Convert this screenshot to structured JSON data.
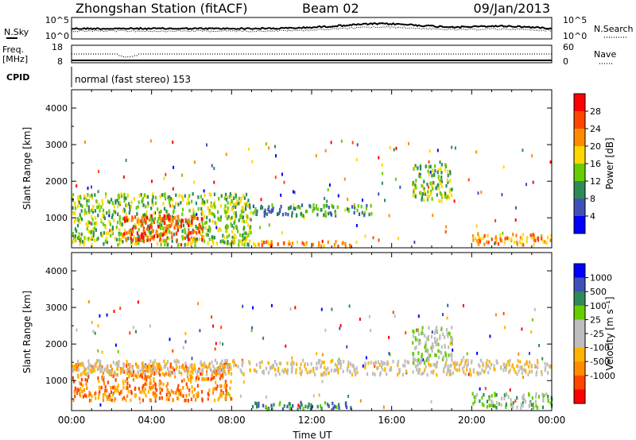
{
  "header": {
    "station": "Zhongshan Station (fitACF)",
    "beam": "Beam 02",
    "date": "09/Jan/2013"
  },
  "top_panels": {
    "nsky_label": "N.Sky",
    "nsky_tick_top": "10^5",
    "nsky_tick_bottom": "10^0",
    "nsearch_label": "N.Search",
    "nsearch_tick_top": "10^5",
    "nsearch_tick_bottom": "10^0",
    "freq_label": "Freq.",
    "freq_unit": "[MHz]",
    "freq_tick_top": "18",
    "freq_tick_bottom": "8",
    "nave_label": "Nave",
    "nave_tick_top": "60",
    "nave_tick_bottom": "0",
    "cpid_label": "CPID",
    "cpid_text": "normal (fast stereo) 153"
  },
  "colors": {
    "power": [
      "#0000ff",
      "#3f51b8",
      "#2e8b57",
      "#66cd00",
      "#ffd700",
      "#ff8c00",
      "#ff4500",
      "#ff0000"
    ],
    "velocity": [
      "#ff0000",
      "#ff4500",
      "#ff8c00",
      "#ffb300",
      "#bebebe",
      "#bebebe",
      "#66cd00",
      "#2e8b57",
      "#3f51b8",
      "#0000ff"
    ]
  },
  "chart_data": [
    {
      "type": "heatmap",
      "name": "power",
      "ylabel": "Slant Range [km]",
      "ylim": [
        180,
        4500
      ],
      "yticks": [
        "1000",
        "2000",
        "3000",
        "4000"
      ],
      "xlim": [
        0,
        24
      ],
      "colorbar_label": "Power [dB]",
      "colorbar_ticks": [
        "4",
        "8",
        "12",
        "16",
        "20",
        "24",
        "28"
      ],
      "bands": [
        {
          "t0": 0.0,
          "t1": 9.0,
          "r0": 300,
          "r1": 1700,
          "level": 3
        },
        {
          "t0": 2.5,
          "t1": 6.5,
          "r0": 400,
          "r1": 1100,
          "level": 6
        },
        {
          "t0": 9.0,
          "t1": 14.0,
          "r0": 250,
          "r1": 400,
          "level": 5
        },
        {
          "t0": 9.0,
          "t1": 15.0,
          "r0": 1100,
          "r1": 1400,
          "level": 2
        },
        {
          "t0": 17.0,
          "t1": 19.0,
          "r0": 1500,
          "r1": 2500,
          "level": 3
        },
        {
          "t0": 20.0,
          "t1": 24.0,
          "r0": 300,
          "r1": 600,
          "level": 5
        }
      ]
    },
    {
      "type": "heatmap",
      "name": "velocity",
      "ylabel": "Slant Range [km]",
      "ylim": [
        180,
        4500
      ],
      "yticks": [
        "1000",
        "2000",
        "3000",
        "4000"
      ],
      "xlabel": "Time UT",
      "xlim": [
        0,
        24
      ],
      "xticks": [
        "00:00",
        "04:00",
        "08:00",
        "12:00",
        "16:00",
        "20:00",
        "00:00"
      ],
      "colorbar_label": "Velocity [m s⁻¹]",
      "colorbar_ticks": [
        "1000",
        "500",
        "100",
        "25",
        "-25",
        "-100",
        "-500",
        "-1000"
      ],
      "bands": [
        {
          "t0": 0.0,
          "t1": 8.0,
          "r0": 500,
          "r1": 1500,
          "level": 2
        },
        {
          "t0": 0.0,
          "t1": 24.0,
          "r0": 1200,
          "r1": 1600,
          "level": 4
        },
        {
          "t0": 9.0,
          "t1": 14.0,
          "r0": 250,
          "r1": 450,
          "level": 7
        },
        {
          "t0": 17.0,
          "t1": 19.0,
          "r0": 1500,
          "r1": 2500,
          "level": 5
        },
        {
          "t0": 20.0,
          "t1": 24.0,
          "r0": 300,
          "r1": 700,
          "level": 6
        }
      ]
    }
  ]
}
